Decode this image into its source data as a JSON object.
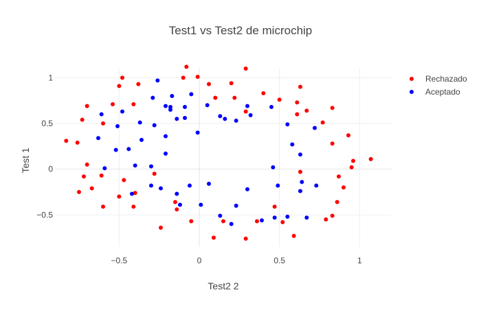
{
  "chart_data": {
    "type": "scatter",
    "title": "Test1 vs Test2 de microchip",
    "xlabel": "Test2 2",
    "ylabel": "Test 1",
    "xlim": [
      -0.9,
      1.2
    ],
    "ylim": [
      -0.85,
      1.1
    ],
    "x_ticks": [
      -0.5,
      0,
      0.5,
      1
    ],
    "x_tick_labels": [
      "−0.5",
      "0",
      "0.5",
      "1"
    ],
    "y_ticks": [
      -0.5,
      0,
      0.5,
      1
    ],
    "y_tick_labels": [
      "−0.5",
      "0",
      "0.5",
      "1"
    ],
    "grid": true,
    "legend_position": "top-right",
    "series": [
      {
        "name": "Rechazado",
        "color": "#ff0000",
        "points": [
          [
            -0.83,
            0.31
          ],
          [
            -0.76,
            0.29
          ],
          [
            -0.73,
            0.54
          ],
          [
            -0.7,
            0.69
          ],
          [
            -0.72,
            -0.08
          ],
          [
            -0.75,
            -0.25
          ],
          [
            -0.7,
            0.05
          ],
          [
            -0.67,
            -0.21
          ],
          [
            -0.6,
            0.5
          ],
          [
            -0.61,
            -0.07
          ],
          [
            -0.6,
            -0.41
          ],
          [
            -0.54,
            0.71
          ],
          [
            -0.5,
            0.91
          ],
          [
            -0.48,
            1.0
          ],
          [
            -0.5,
            -0.3
          ],
          [
            -0.47,
            -0.12
          ],
          [
            -0.41,
            0.71
          ],
          [
            -0.38,
            0.93
          ],
          [
            -0.41,
            -0.41
          ],
          [
            -0.4,
            -0.26
          ],
          [
            -0.28,
            -0.05
          ],
          [
            -0.24,
            -0.64
          ],
          [
            -0.15,
            -0.36
          ],
          [
            -0.14,
            -0.44
          ],
          [
            -0.1,
            1.0
          ],
          [
            -0.08,
            1.12
          ],
          [
            -0.05,
            -0.57
          ],
          [
            -0.01,
            1.01
          ],
          [
            0.06,
            0.93
          ],
          [
            0.1,
            0.78
          ],
          [
            0.09,
            -0.75
          ],
          [
            0.15,
            -0.57
          ],
          [
            0.2,
            0.94
          ],
          [
            0.22,
            0.78
          ],
          [
            0.29,
            1.1
          ],
          [
            0.29,
            0.63
          ],
          [
            0.29,
            -0.76
          ],
          [
            0.36,
            -0.57
          ],
          [
            0.4,
            0.83
          ],
          [
            0.47,
            -0.41
          ],
          [
            0.5,
            0.76
          ],
          [
            0.52,
            -0.58
          ],
          [
            0.59,
            -0.73
          ],
          [
            0.61,
            0.6
          ],
          [
            0.61,
            0.73
          ],
          [
            0.63,
            0.9
          ],
          [
            0.63,
            -0.03
          ],
          [
            0.67,
            0.64
          ],
          [
            0.77,
            0.51
          ],
          [
            0.79,
            -0.55
          ],
          [
            0.83,
            0.67
          ],
          [
            0.83,
            0.28
          ],
          [
            0.83,
            -0.51
          ],
          [
            0.86,
            -0.36
          ],
          [
            0.87,
            -0.08
          ],
          [
            0.9,
            -0.2
          ],
          [
            0.93,
            0.37
          ],
          [
            0.95,
            0.02
          ],
          [
            0.96,
            0.09
          ],
          [
            1.07,
            0.11
          ]
        ]
      },
      {
        "name": "Aceptado",
        "color": "#0000ff",
        "points": [
          [
            -0.61,
            0.6
          ],
          [
            -0.63,
            0.34
          ],
          [
            -0.59,
            0.01
          ],
          [
            -0.52,
            0.21
          ],
          [
            -0.51,
            0.47
          ],
          [
            -0.48,
            0.63
          ],
          [
            -0.44,
            0.22
          ],
          [
            -0.42,
            -0.27
          ],
          [
            -0.4,
            0.04
          ],
          [
            -0.37,
            0.51
          ],
          [
            -0.36,
            0.32
          ],
          [
            -0.3,
            0.03
          ],
          [
            -0.3,
            -0.18
          ],
          [
            -0.29,
            0.78
          ],
          [
            -0.28,
            0.48
          ],
          [
            -0.26,
            0.97
          ],
          [
            -0.24,
            -0.21
          ],
          [
            -0.21,
            0.69
          ],
          [
            -0.21,
            0.36
          ],
          [
            -0.21,
            0.17
          ],
          [
            -0.18,
            0.68
          ],
          [
            -0.18,
            0.65
          ],
          [
            -0.17,
            0.8
          ],
          [
            -0.14,
            0.55
          ],
          [
            -0.14,
            -0.27
          ],
          [
            -0.12,
            -0.39
          ],
          [
            -0.09,
            0.68
          ],
          [
            -0.09,
            0.56
          ],
          [
            -0.06,
            -0.18
          ],
          [
            -0.05,
            0.82
          ],
          [
            -0.01,
            0.4
          ],
          [
            0.01,
            -0.39
          ],
          [
            0.05,
            0.7
          ],
          [
            0.06,
            -0.16
          ],
          [
            0.13,
            0.58
          ],
          [
            0.13,
            -0.51
          ],
          [
            0.16,
            0.55
          ],
          [
            0.2,
            -0.6
          ],
          [
            0.23,
            0.53
          ],
          [
            0.23,
            -0.4
          ],
          [
            0.3,
            0.69
          ],
          [
            0.3,
            -0.22
          ],
          [
            0.32,
            0.59
          ],
          [
            0.39,
            -0.56
          ],
          [
            0.45,
            0.68
          ],
          [
            0.46,
            0.02
          ],
          [
            0.47,
            -0.53
          ],
          [
            0.49,
            -0.18
          ],
          [
            0.55,
            -0.52
          ],
          [
            0.55,
            0.49
          ],
          [
            0.58,
            0.27
          ],
          [
            0.63,
            0.16
          ],
          [
            0.63,
            -0.24
          ],
          [
            0.64,
            -0.14
          ],
          [
            0.67,
            -0.53
          ],
          [
            0.72,
            0.45
          ],
          [
            0.73,
            -0.18
          ]
        ]
      }
    ]
  }
}
